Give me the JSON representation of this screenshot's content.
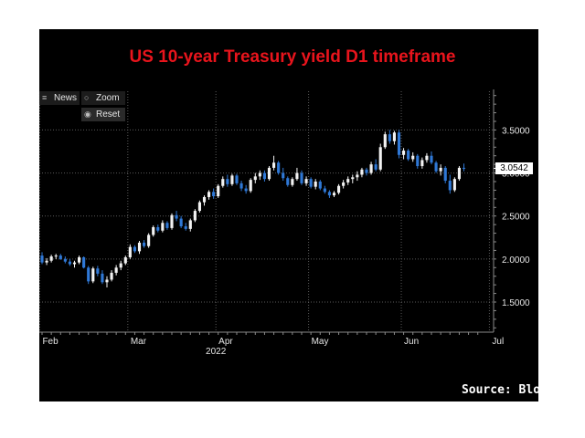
{
  "title": "US 10-year Treasury yield D1 timeframe",
  "source": "Source: Bloomberg",
  "colors": {
    "background": "#000000",
    "title": "#e8141c",
    "candle_up": "#f2f2f2",
    "candle_down": "#2f78d6",
    "grid": "#5a5a5a",
    "axis_text": "#e6e6e6"
  },
  "toolbar": {
    "news_label": "News",
    "news_icon": "list-icon",
    "zoom_label": "Zoom",
    "zoom_icon": "magnifier-icon",
    "reset_label": "Reset",
    "reset_icon": "radio-dot-icon"
  },
  "chart_data": {
    "type": "candlestick",
    "title": "US 10-year Treasury yield D1 timeframe",
    "xlabel": "2022",
    "ylabel": "",
    "ylim": [
      1.15,
      3.95
    ],
    "y_ticks": [
      1.5,
      2.0,
      2.5,
      3.0,
      3.5
    ],
    "y_tick_labels": [
      "1.5000",
      "2.0000",
      "2.5000",
      "3.0000",
      "3.5000"
    ],
    "x_ticks": [
      0,
      19,
      38,
      58,
      78,
      97
    ],
    "x_tick_labels": [
      "Feb",
      "Mar",
      "Apr",
      "May",
      "Jun",
      "Jul"
    ],
    "year_label": "2022",
    "year_label_index": 38,
    "last_value_label": "3.0542",
    "last_value": 3.0542,
    "grid": true,
    "candles": [
      [
        2.04,
        2.08,
        1.94,
        1.96
      ],
      [
        1.96,
        2.01,
        1.93,
        1.98
      ],
      [
        1.98,
        2.05,
        1.96,
        2.03
      ],
      [
        2.03,
        2.06,
        2.0,
        2.04
      ],
      [
        2.04,
        2.06,
        1.99,
        2.0
      ],
      [
        2.0,
        2.03,
        1.95,
        1.97
      ],
      [
        1.97,
        2.0,
        1.92,
        1.94
      ],
      [
        1.94,
        1.98,
        1.9,
        1.96
      ],
      [
        1.96,
        2.04,
        1.94,
        2.02
      ],
      [
        2.02,
        2.03,
        1.89,
        1.9
      ],
      [
        1.9,
        1.92,
        1.71,
        1.74
      ],
      [
        1.74,
        1.91,
        1.72,
        1.89
      ],
      [
        1.89,
        1.92,
        1.8,
        1.83
      ],
      [
        1.83,
        1.87,
        1.71,
        1.73
      ],
      [
        1.73,
        1.8,
        1.67,
        1.76
      ],
      [
        1.76,
        1.87,
        1.74,
        1.84
      ],
      [
        1.84,
        1.93,
        1.81,
        1.9
      ],
      [
        1.9,
        1.98,
        1.87,
        1.95
      ],
      [
        1.95,
        2.04,
        1.93,
        2.02
      ],
      [
        2.02,
        2.17,
        2.0,
        2.14
      ],
      [
        2.14,
        2.16,
        2.07,
        2.09
      ],
      [
        2.09,
        2.21,
        2.06,
        2.19
      ],
      [
        2.19,
        2.22,
        2.13,
        2.15
      ],
      [
        2.15,
        2.3,
        2.13,
        2.28
      ],
      [
        2.28,
        2.39,
        2.26,
        2.37
      ],
      [
        2.37,
        2.4,
        2.31,
        2.33
      ],
      [
        2.33,
        2.45,
        2.31,
        2.42
      ],
      [
        2.42,
        2.44,
        2.34,
        2.36
      ],
      [
        2.36,
        2.53,
        2.34,
        2.51
      ],
      [
        2.51,
        2.56,
        2.44,
        2.47
      ],
      [
        2.47,
        2.5,
        2.36,
        2.38
      ],
      [
        2.38,
        2.42,
        2.33,
        2.35
      ],
      [
        2.35,
        2.47,
        2.32,
        2.45
      ],
      [
        2.45,
        2.58,
        2.43,
        2.56
      ],
      [
        2.56,
        2.68,
        2.54,
        2.66
      ],
      [
        2.66,
        2.74,
        2.62,
        2.72
      ],
      [
        2.72,
        2.8,
        2.69,
        2.78
      ],
      [
        2.78,
        2.82,
        2.7,
        2.73
      ],
      [
        2.73,
        2.87,
        2.71,
        2.85
      ],
      [
        2.85,
        2.96,
        2.83,
        2.93
      ],
      [
        2.93,
        2.98,
        2.84,
        2.87
      ],
      [
        2.87,
        2.99,
        2.85,
        2.97
      ],
      [
        2.97,
        2.99,
        2.86,
        2.88
      ],
      [
        2.88,
        2.91,
        2.79,
        2.82
      ],
      [
        2.82,
        2.86,
        2.76,
        2.79
      ],
      [
        2.79,
        2.94,
        2.77,
        2.92
      ],
      [
        2.92,
        3.0,
        2.88,
        2.96
      ],
      [
        2.96,
        3.03,
        2.92,
        3.0
      ],
      [
        3.0,
        3.03,
        2.9,
        2.93
      ],
      [
        2.93,
        3.08,
        2.91,
        3.06
      ],
      [
        3.06,
        3.2,
        3.03,
        3.12
      ],
      [
        3.12,
        3.14,
        2.98,
        3.0
      ],
      [
        3.0,
        3.06,
        2.91,
        2.94
      ],
      [
        2.94,
        2.96,
        2.84,
        2.86
      ],
      [
        2.86,
        2.95,
        2.84,
        2.93
      ],
      [
        2.93,
        3.06,
        2.91,
        3.0
      ],
      [
        3.0,
        3.03,
        2.86,
        2.88
      ],
      [
        2.88,
        2.96,
        2.85,
        2.93
      ],
      [
        2.93,
        2.95,
        2.82,
        2.84
      ],
      [
        2.84,
        2.93,
        2.81,
        2.9
      ],
      [
        2.9,
        2.92,
        2.8,
        2.82
      ],
      [
        2.82,
        2.85,
        2.76,
        2.78
      ],
      [
        2.78,
        2.8,
        2.71,
        2.74
      ],
      [
        2.74,
        2.79,
        2.72,
        2.77
      ],
      [
        2.77,
        2.87,
        2.75,
        2.85
      ],
      [
        2.85,
        2.92,
        2.82,
        2.89
      ],
      [
        2.89,
        2.96,
        2.86,
        2.93
      ],
      [
        2.93,
        2.98,
        2.88,
        2.95
      ],
      [
        2.95,
        3.02,
        2.91,
        2.98
      ],
      [
        2.98,
        3.06,
        2.95,
        3.04
      ],
      [
        3.04,
        3.06,
        2.97,
        3.0
      ],
      [
        3.0,
        3.13,
        2.98,
        3.1
      ],
      [
        3.1,
        3.16,
        3.02,
        3.04
      ],
      [
        3.04,
        3.34,
        3.02,
        3.3
      ],
      [
        3.3,
        3.48,
        3.28,
        3.45
      ],
      [
        3.45,
        3.5,
        3.34,
        3.37
      ],
      [
        3.37,
        3.49,
        3.33,
        3.47
      ],
      [
        3.47,
        3.5,
        3.17,
        3.21
      ],
      [
        3.21,
        3.29,
        3.16,
        3.26
      ],
      [
        3.26,
        3.28,
        3.14,
        3.16
      ],
      [
        3.16,
        3.24,
        3.13,
        3.2
      ],
      [
        3.2,
        3.22,
        3.05,
        3.08
      ],
      [
        3.08,
        3.18,
        3.05,
        3.15
      ],
      [
        3.15,
        3.23,
        3.12,
        3.2
      ],
      [
        3.2,
        3.25,
        3.1,
        3.12
      ],
      [
        3.12,
        3.14,
        3.0,
        3.02
      ],
      [
        3.02,
        3.1,
        2.97,
        3.06
      ],
      [
        3.06,
        3.08,
        2.88,
        2.91
      ],
      [
        2.91,
        2.98,
        2.76,
        2.8
      ],
      [
        2.8,
        2.95,
        2.78,
        2.93
      ],
      [
        2.93,
        3.08,
        2.91,
        3.06
      ],
      [
        3.06,
        3.11,
        3.02,
        3.05
      ]
    ]
  }
}
